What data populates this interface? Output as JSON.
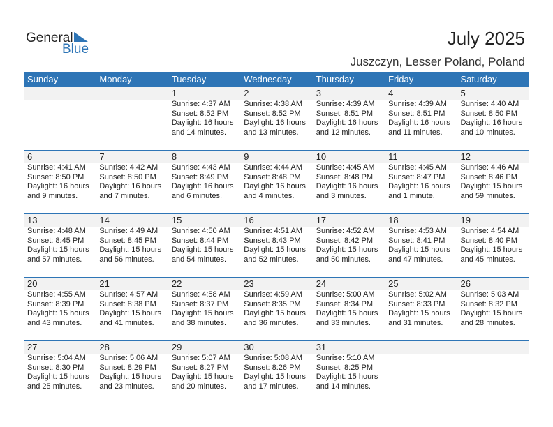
{
  "brand": {
    "line1": "General",
    "line2": "Blue",
    "accent": "#2e75b6"
  },
  "title": "July 2025",
  "location": "Juszczyn, Lesser Poland, Poland",
  "weekdays": [
    "Sunday",
    "Monday",
    "Tuesday",
    "Wednesday",
    "Thursday",
    "Friday",
    "Saturday"
  ],
  "weeks": [
    [
      null,
      null,
      {
        "d": "1",
        "sr": "Sunrise: 4:37 AM",
        "ss": "Sunset: 8:52 PM",
        "dl1": "Daylight: 16 hours",
        "dl2": "and 14 minutes."
      },
      {
        "d": "2",
        "sr": "Sunrise: 4:38 AM",
        "ss": "Sunset: 8:52 PM",
        "dl1": "Daylight: 16 hours",
        "dl2": "and 13 minutes."
      },
      {
        "d": "3",
        "sr": "Sunrise: 4:39 AM",
        "ss": "Sunset: 8:51 PM",
        "dl1": "Daylight: 16 hours",
        "dl2": "and 12 minutes."
      },
      {
        "d": "4",
        "sr": "Sunrise: 4:39 AM",
        "ss": "Sunset: 8:51 PM",
        "dl1": "Daylight: 16 hours",
        "dl2": "and 11 minutes."
      },
      {
        "d": "5",
        "sr": "Sunrise: 4:40 AM",
        "ss": "Sunset: 8:50 PM",
        "dl1": "Daylight: 16 hours",
        "dl2": "and 10 minutes."
      }
    ],
    [
      {
        "d": "6",
        "sr": "Sunrise: 4:41 AM",
        "ss": "Sunset: 8:50 PM",
        "dl1": "Daylight: 16 hours",
        "dl2": "and 9 minutes."
      },
      {
        "d": "7",
        "sr": "Sunrise: 4:42 AM",
        "ss": "Sunset: 8:50 PM",
        "dl1": "Daylight: 16 hours",
        "dl2": "and 7 minutes."
      },
      {
        "d": "8",
        "sr": "Sunrise: 4:43 AM",
        "ss": "Sunset: 8:49 PM",
        "dl1": "Daylight: 16 hours",
        "dl2": "and 6 minutes."
      },
      {
        "d": "9",
        "sr": "Sunrise: 4:44 AM",
        "ss": "Sunset: 8:48 PM",
        "dl1": "Daylight: 16 hours",
        "dl2": "and 4 minutes."
      },
      {
        "d": "10",
        "sr": "Sunrise: 4:45 AM",
        "ss": "Sunset: 8:48 PM",
        "dl1": "Daylight: 16 hours",
        "dl2": "and 3 minutes."
      },
      {
        "d": "11",
        "sr": "Sunrise: 4:45 AM",
        "ss": "Sunset: 8:47 PM",
        "dl1": "Daylight: 16 hours",
        "dl2": "and 1 minute."
      },
      {
        "d": "12",
        "sr": "Sunrise: 4:46 AM",
        "ss": "Sunset: 8:46 PM",
        "dl1": "Daylight: 15 hours",
        "dl2": "and 59 minutes."
      }
    ],
    [
      {
        "d": "13",
        "sr": "Sunrise: 4:48 AM",
        "ss": "Sunset: 8:45 PM",
        "dl1": "Daylight: 15 hours",
        "dl2": "and 57 minutes."
      },
      {
        "d": "14",
        "sr": "Sunrise: 4:49 AM",
        "ss": "Sunset: 8:45 PM",
        "dl1": "Daylight: 15 hours",
        "dl2": "and 56 minutes."
      },
      {
        "d": "15",
        "sr": "Sunrise: 4:50 AM",
        "ss": "Sunset: 8:44 PM",
        "dl1": "Daylight: 15 hours",
        "dl2": "and 54 minutes."
      },
      {
        "d": "16",
        "sr": "Sunrise: 4:51 AM",
        "ss": "Sunset: 8:43 PM",
        "dl1": "Daylight: 15 hours",
        "dl2": "and 52 minutes."
      },
      {
        "d": "17",
        "sr": "Sunrise: 4:52 AM",
        "ss": "Sunset: 8:42 PM",
        "dl1": "Daylight: 15 hours",
        "dl2": "and 50 minutes."
      },
      {
        "d": "18",
        "sr": "Sunrise: 4:53 AM",
        "ss": "Sunset: 8:41 PM",
        "dl1": "Daylight: 15 hours",
        "dl2": "and 47 minutes."
      },
      {
        "d": "19",
        "sr": "Sunrise: 4:54 AM",
        "ss": "Sunset: 8:40 PM",
        "dl1": "Daylight: 15 hours",
        "dl2": "and 45 minutes."
      }
    ],
    [
      {
        "d": "20",
        "sr": "Sunrise: 4:55 AM",
        "ss": "Sunset: 8:39 PM",
        "dl1": "Daylight: 15 hours",
        "dl2": "and 43 minutes."
      },
      {
        "d": "21",
        "sr": "Sunrise: 4:57 AM",
        "ss": "Sunset: 8:38 PM",
        "dl1": "Daylight: 15 hours",
        "dl2": "and 41 minutes."
      },
      {
        "d": "22",
        "sr": "Sunrise: 4:58 AM",
        "ss": "Sunset: 8:37 PM",
        "dl1": "Daylight: 15 hours",
        "dl2": "and 38 minutes."
      },
      {
        "d": "23",
        "sr": "Sunrise: 4:59 AM",
        "ss": "Sunset: 8:35 PM",
        "dl1": "Daylight: 15 hours",
        "dl2": "and 36 minutes."
      },
      {
        "d": "24",
        "sr": "Sunrise: 5:00 AM",
        "ss": "Sunset: 8:34 PM",
        "dl1": "Daylight: 15 hours",
        "dl2": "and 33 minutes."
      },
      {
        "d": "25",
        "sr": "Sunrise: 5:02 AM",
        "ss": "Sunset: 8:33 PM",
        "dl1": "Daylight: 15 hours",
        "dl2": "and 31 minutes."
      },
      {
        "d": "26",
        "sr": "Sunrise: 5:03 AM",
        "ss": "Sunset: 8:32 PM",
        "dl1": "Daylight: 15 hours",
        "dl2": "and 28 minutes."
      }
    ],
    [
      {
        "d": "27",
        "sr": "Sunrise: 5:04 AM",
        "ss": "Sunset: 8:30 PM",
        "dl1": "Daylight: 15 hours",
        "dl2": "and 25 minutes."
      },
      {
        "d": "28",
        "sr": "Sunrise: 5:06 AM",
        "ss": "Sunset: 8:29 PM",
        "dl1": "Daylight: 15 hours",
        "dl2": "and 23 minutes."
      },
      {
        "d": "29",
        "sr": "Sunrise: 5:07 AM",
        "ss": "Sunset: 8:27 PM",
        "dl1": "Daylight: 15 hours",
        "dl2": "and 20 minutes."
      },
      {
        "d": "30",
        "sr": "Sunrise: 5:08 AM",
        "ss": "Sunset: 8:26 PM",
        "dl1": "Daylight: 15 hours",
        "dl2": "and 17 minutes."
      },
      {
        "d": "31",
        "sr": "Sunrise: 5:10 AM",
        "ss": "Sunset: 8:25 PM",
        "dl1": "Daylight: 15 hours",
        "dl2": "and 14 minutes."
      },
      null,
      null
    ]
  ]
}
